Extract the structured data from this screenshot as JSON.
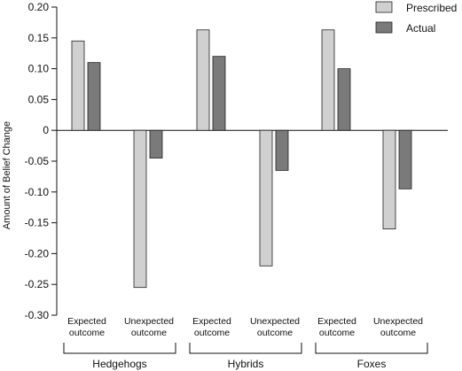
{
  "chart_data": {
    "type": "bar",
    "title": "",
    "xlabel": "",
    "ylabel": "Amount of Belief Change",
    "ylim": [
      -0.3,
      0.2
    ],
    "yticks": [
      "0.20",
      "0.15",
      "0.10",
      "0.05",
      "0",
      "-0.05",
      "-0.10",
      "-0.15",
      "-0.20",
      "-0.25",
      "-0.30"
    ],
    "grid": false,
    "legend_position": "top-right",
    "groups": [
      {
        "name": "Hedgehogs",
        "categories": [
          "Expected outcome",
          "Unexpected outcome"
        ]
      },
      {
        "name": "Hybrids",
        "categories": [
          "Expected outcome",
          "Unexpected outcome"
        ]
      },
      {
        "name": "Foxes",
        "categories": [
          "Expected outcome",
          "Unexpected outcome"
        ]
      }
    ],
    "category_line1": [
      "Expected",
      "Unexpected"
    ],
    "category_line2": [
      "outcome",
      "outcome"
    ],
    "series": [
      {
        "name": "Prescribed",
        "color": "#d0d0d0",
        "values": [
          0.145,
          -0.255,
          0.163,
          -0.22,
          0.163,
          -0.16
        ]
      },
      {
        "name": "Actual",
        "color": "#7a7a7a",
        "values": [
          0.11,
          -0.045,
          0.12,
          -0.065,
          0.1,
          -0.095
        ]
      }
    ]
  }
}
